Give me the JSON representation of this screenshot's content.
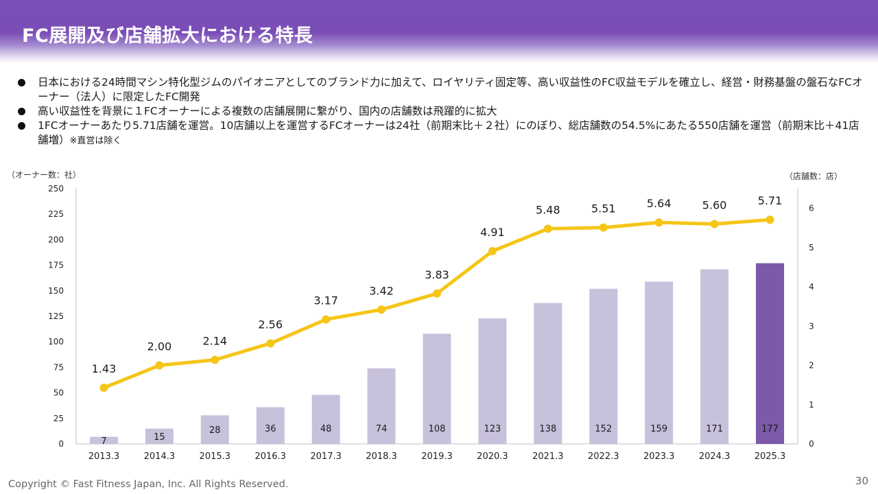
{
  "header": {
    "title": "FC展開及び店舗拡大における特長"
  },
  "bullets": [
    {
      "text": "日本における24時間マシン特化型ジムのパイオニアとしてのブランド力に加えて、ロイヤリティ固定等、高い収益性のFC収益モデルを確立し、経営・財務基盤の盤石なFCオーナー（法人）に限定したFC開発",
      "note": ""
    },
    {
      "text": "高い収益性を背景に１FCオーナーによる複数の店舗展開に繋がり、国内の店舗数は飛躍的に拡大",
      "note": ""
    },
    {
      "text": "1FCオーナーあたり5.71店舗を運営。10店舗以上を運営するFCオーナーは24社（前期末比＋２社）にのぼり、総店舗数の54.5%にあたる550店舗を運営（前期末比＋41店舗増）",
      "note": "※直営は除く"
    }
  ],
  "chart_data": {
    "type": "bar",
    "categories": [
      "2013.3",
      "2014.3",
      "2015.3",
      "2016.3",
      "2017.3",
      "2018.3",
      "2019.3",
      "2020.3",
      "2021.3",
      "2022.3",
      "2023.3",
      "2024.3",
      "2025.3"
    ],
    "series": [
      {
        "type": "bar",
        "axis": "left",
        "values": [
          7,
          15,
          28,
          36,
          48,
          74,
          108,
          123,
          138,
          152,
          159,
          171,
          177
        ],
        "highlight_last": true
      },
      {
        "type": "line",
        "axis": "right",
        "values": [
          1.43,
          2.0,
          2.14,
          2.56,
          3.17,
          3.42,
          3.83,
          4.91,
          5.48,
          5.51,
          5.64,
          5.6,
          5.71
        ]
      }
    ],
    "y_left": {
      "label": "（オーナー数：社）",
      "ticks": [
        "0",
        "25",
        "50",
        "75",
        "100",
        "125",
        "150",
        "175",
        "200",
        "225",
        "250"
      ],
      "range": [
        0,
        250
      ]
    },
    "y_right": {
      "label": "（店舗数：店）",
      "ticks": [
        "0",
        "1",
        "2",
        "3",
        "4",
        "5",
        "6"
      ],
      "range": [
        0,
        6.5
      ]
    },
    "colors": {
      "bar": "#c8c1dc",
      "bar_highlight": "#7b5aa8",
      "line": "#f5c518",
      "axis": "#bfbfbf"
    }
  },
  "footer": {
    "copyright": "Copyright © Fast Fitness Japan, Inc. All Rights Reserved.",
    "page": "30"
  }
}
